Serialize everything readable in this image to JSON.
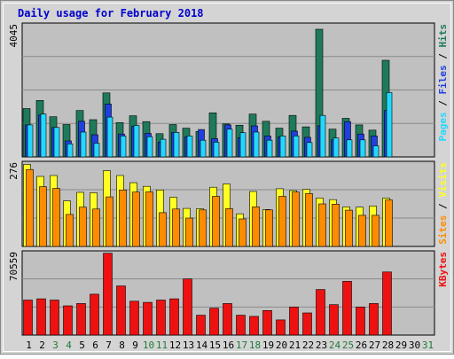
{
  "title": "Daily usage for February 2018",
  "colors": {
    "hits": "#1f7a5a",
    "files": "#1f3fe0",
    "pages": "#22d8ff",
    "visits": "#ffff22",
    "sites": "#ff8c00",
    "kbytes": "#ee1111",
    "panel": "#c0c0c0",
    "title": "#0000cc",
    "weekend_day": "#1f7a3a",
    "weekday": "#000000"
  },
  "chart_data": [
    {
      "type": "bar",
      "panel": "top",
      "ymax_label": "4045",
      "ylim": [
        0,
        4045
      ],
      "legend_right": [
        {
          "text": "Pages",
          "color_key": "pages"
        },
        {
          "text": " / ",
          "color_key": "weekday"
        },
        {
          "text": "Files",
          "color_key": "files"
        },
        {
          "text": " / ",
          "color_key": "weekday"
        },
        {
          "text": "Hits",
          "color_key": "hits"
        }
      ],
      "series": [
        {
          "name": "Hits",
          "color_key": "hits",
          "values": [
            1480,
            1730,
            1230,
            990,
            1420,
            1140,
            1960,
            1050,
            1260,
            1080,
            710,
            990,
            880,
            780,
            1350,
            1010,
            970,
            1310,
            1090,
            880,
            1270,
            920,
            3910,
            850,
            1180,
            980,
            820,
            2960,
            0,
            0,
            0
          ]
        },
        {
          "name": "Files",
          "color_key": "files",
          "values": [
            980,
            1280,
            900,
            490,
            1090,
            680,
            1620,
            700,
            940,
            720,
            450,
            750,
            620,
            840,
            560,
            980,
            590,
            950,
            640,
            610,
            790,
            600,
            950,
            520,
            1080,
            700,
            640,
            1420,
            0,
            0,
            0
          ]
        },
        {
          "name": "Pages",
          "color_key": "pages",
          "values": [
            980,
            1310,
            900,
            400,
            760,
            420,
            1220,
            640,
            960,
            620,
            540,
            750,
            640,
            510,
            450,
            850,
            740,
            760,
            510,
            640,
            640,
            440,
            1270,
            580,
            520,
            520,
            340,
            1970,
            0,
            0,
            0
          ]
        }
      ]
    },
    {
      "type": "bar",
      "panel": "middle",
      "ymax_label": "276",
      "ylim": [
        0,
        276
      ],
      "legend_right": [
        {
          "text": "Sites",
          "color_key": "sites"
        },
        {
          "text": " / ",
          "color_key": "weekday"
        },
        {
          "text": "Visits",
          "color_key": "visits"
        }
      ],
      "series": [
        {
          "name": "Visits",
          "color_key": "visits",
          "values": [
            272,
            232,
            235,
            151,
            179,
            178,
            251,
            235,
            211,
            199,
            187,
            163,
            126,
            125,
            196,
            207,
            108,
            182,
            122,
            191,
            185,
            189,
            160,
            155,
            131,
            130,
            134,
            160,
            0,
            0,
            0
          ]
        },
        {
          "name": "Sites",
          "color_key": "sites",
          "values": [
            255,
            198,
            192,
            106,
            130,
            124,
            164,
            187,
            180,
            181,
            112,
            124,
            94,
            121,
            166,
            125,
            91,
            131,
            121,
            166,
            180,
            175,
            141,
            140,
            120,
            103,
            103,
            154,
            0,
            0,
            0
          ]
        }
      ]
    },
    {
      "type": "bar",
      "panel": "bottom",
      "ymax_label": "70559",
      "ylim": [
        0,
        70559
      ],
      "legend_right": [
        {
          "text": "KBytes",
          "color_key": "kbytes"
        }
      ],
      "series": [
        {
          "name": "KBytes",
          "color_key": "kbytes",
          "values": [
            30000,
            31000,
            30000,
            25000,
            27000,
            35000,
            70000,
            42000,
            29000,
            28000,
            30000,
            31000,
            48000,
            17000,
            23000,
            27000,
            17000,
            16000,
            21000,
            13000,
            24000,
            19000,
            39000,
            26000,
            46000,
            24000,
            27000,
            54000,
            0,
            0,
            0
          ]
        }
      ]
    }
  ],
  "x_labels": [
    "1",
    "2",
    "3",
    "4",
    "5",
    "6",
    "7",
    "8",
    "9",
    "10",
    "11",
    "12",
    "13",
    "14",
    "15",
    "16",
    "17",
    "18",
    "19",
    "20",
    "21",
    "22",
    "23",
    "24",
    "25",
    "26",
    "27",
    "28",
    "29",
    "30",
    "31"
  ],
  "weekend_days": [
    3,
    4,
    10,
    11,
    17,
    18,
    24,
    25,
    31
  ]
}
